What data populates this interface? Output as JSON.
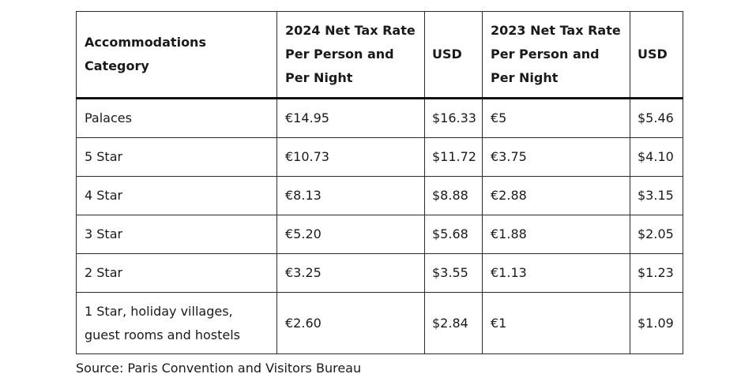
{
  "table": {
    "headers": [
      "Accommodations Category",
      "2024 Net Tax Rate Per Person and Per Night",
      "USD",
      "2023 Net Tax Rate Per Person and Per Night",
      "USD"
    ],
    "rows": [
      [
        "Palaces",
        "€14.95",
        "$16.33",
        "€5",
        "$5.46"
      ],
      [
        "5 Star",
        "€10.73",
        "$11.72",
        "€3.75",
        "$4.10"
      ],
      [
        "4 Star",
        "€8.13",
        "$8.88",
        "€2.88",
        "$3.15"
      ],
      [
        "3 Star",
        "€5.20",
        "$5.68",
        "€1.88",
        "$2.05"
      ],
      [
        "2 Star",
        "€3.25",
        "$3.55",
        "€1.13",
        "$1.23"
      ],
      [
        "1 Star, holiday villages, guest rooms and hostels",
        "€2.60",
        "$2.84",
        "€1",
        "$1.09"
      ]
    ]
  },
  "source": "Source: Paris Convention and Visitors Bureau"
}
